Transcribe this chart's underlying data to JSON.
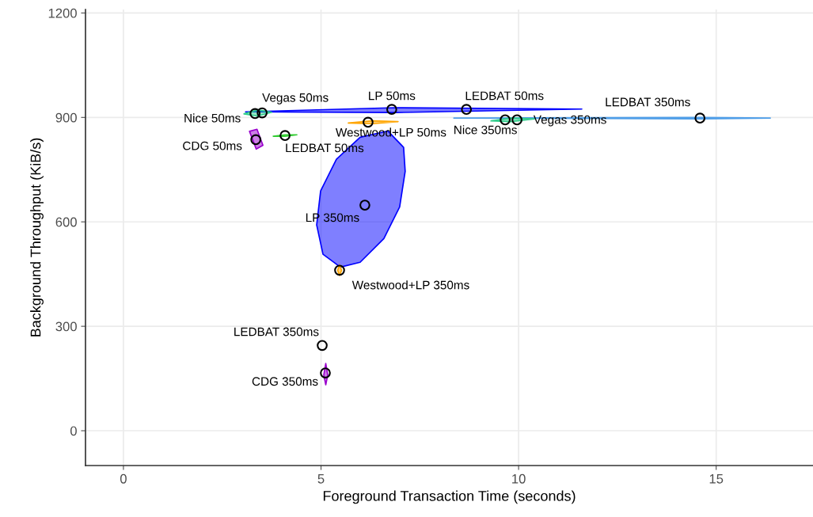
{
  "chart_data": {
    "type": "scatter",
    "xlabel": "Foreground Transaction Time (seconds)",
    "ylabel": "Background Throughput (KiB/s)",
    "xlim": [
      -0.96,
      17.45
    ],
    "ylim": [
      -100,
      1210
    ],
    "xticks": [
      0,
      5,
      10,
      15
    ],
    "yticks": [
      0,
      300,
      600,
      900,
      1200
    ],
    "grid": true,
    "series": [
      {
        "type": "area",
        "color": "#0000ff",
        "x": [
          6.69,
          7.09,
          7.13,
          6.99,
          6.59,
          5.99,
          5.49,
          5.05,
          4.89,
          4.99,
          5.39,
          5.99
        ],
        "values": [
          861,
          814,
          745,
          643,
          552,
          484,
          470,
          507,
          591,
          689,
          780,
          843
        ]
      },
      {
        "type": "area",
        "color": "#0000ff",
        "x": [
          3.09,
          6.89,
          11.6,
          6.89
        ],
        "values": [
          916,
          928,
          924,
          914
        ]
      },
      {
        "type": "area",
        "color": "#4f9ee8",
        "x": [
          8.36,
          14.59,
          16.37,
          14.59
        ],
        "values": [
          898,
          900,
          898,
          896
        ]
      },
      {
        "type": "area",
        "color": "#2ecc8a",
        "x": [
          3.05,
          3.4,
          3.75,
          3.4
        ],
        "values": [
          910,
          922,
          915,
          904
        ]
      },
      {
        "type": "area",
        "color": "#2ecc8a",
        "x": [
          9.3,
          9.8,
          10.4,
          9.8
        ],
        "values": [
          890,
          898,
          896,
          888
        ]
      },
      {
        "type": "area",
        "color": "#ffa500",
        "x": [
          5.69,
          6.3,
          6.95,
          6.3
        ],
        "values": [
          884,
          890,
          888,
          882
        ]
      },
      {
        "type": "area",
        "color": "#33cc33",
        "x": [
          3.79,
          4.09,
          4.39,
          4.09
        ],
        "values": [
          846,
          850,
          850,
          846
        ]
      },
      {
        "type": "area",
        "color": "#9900cc",
        "x": [
          3.19,
          3.38,
          3.53,
          3.36
        ],
        "values": [
          860,
          866,
          820,
          809
        ]
      },
      {
        "type": "area",
        "color": "#9900cc",
        "x": [
          5.07,
          5.12,
          5.17,
          5.12
        ],
        "values": [
          160,
          193,
          160,
          132
        ]
      },
      {
        "type": "area",
        "color": "#ffa500",
        "x": [
          5.42,
          5.47,
          5.52,
          5.47
        ],
        "values": [
          461,
          476,
          461,
          446
        ]
      },
      {
        "color": "#000000",
        "marker": "circle",
        "x": [
          3.33,
          3.51,
          6.79,
          8.68,
          14.59,
          9.66,
          9.96,
          6.19,
          4.09,
          3.35,
          6.11,
          5.47,
          5.03,
          5.11
        ],
        "values": [
          911,
          913,
          923,
          923,
          898,
          893,
          893,
          886,
          848,
          836,
          648,
          461,
          245,
          166
        ]
      }
    ],
    "annotations": [
      {
        "text": "Nice 50ms",
        "x": 3.33,
        "y": 911
      },
      {
        "text": "Vegas 50ms",
        "x": 3.51,
        "y": 913
      },
      {
        "text": "LP 50ms",
        "x": 6.79,
        "y": 923
      },
      {
        "text": "LEDBAT 50ms",
        "x": 8.68,
        "y": 923
      },
      {
        "text": "LEDBAT 350ms",
        "x": 14.59,
        "y": 898
      },
      {
        "text": "Nice 350ms",
        "x": 9.66,
        "y": 893
      },
      {
        "text": "Vegas 350ms",
        "x": 9.96,
        "y": 893
      },
      {
        "text": "Westwood+LP 50ms",
        "x": 6.19,
        "y": 886
      },
      {
        "text": "LEDBAT 50ms",
        "x": 4.09,
        "y": 848
      },
      {
        "text": "CDG 50ms",
        "x": 3.35,
        "y": 836
      },
      {
        "text": "LP 350ms",
        "x": 6.11,
        "y": 648
      },
      {
        "text": "Westwood+LP 350ms",
        "x": 5.47,
        "y": 461
      },
      {
        "text": "LEDBAT 350ms",
        "x": 5.03,
        "y": 245
      },
      {
        "text": "CDG 350ms",
        "x": 5.11,
        "y": 166
      }
    ]
  }
}
